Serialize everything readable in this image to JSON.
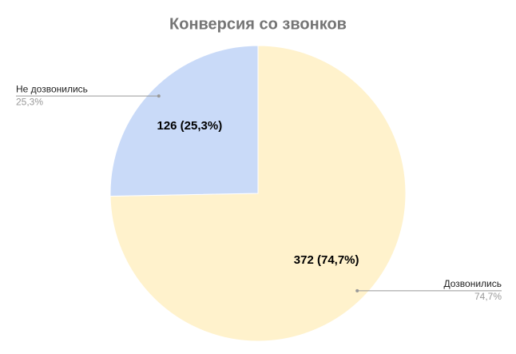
{
  "chart_data": {
    "type": "pie",
    "title": "Конверсия со звонков",
    "categories": [
      "Дозвонились",
      "Не дозвонились"
    ],
    "values": [
      372,
      126
    ],
    "value_labels": [
      "372 (74,7%)",
      "126 (25,3%)"
    ],
    "percent_labels": [
      "74,7%",
      "25,3%"
    ],
    "colors": [
      "#fff2cc",
      "#c9daf8"
    ]
  }
}
